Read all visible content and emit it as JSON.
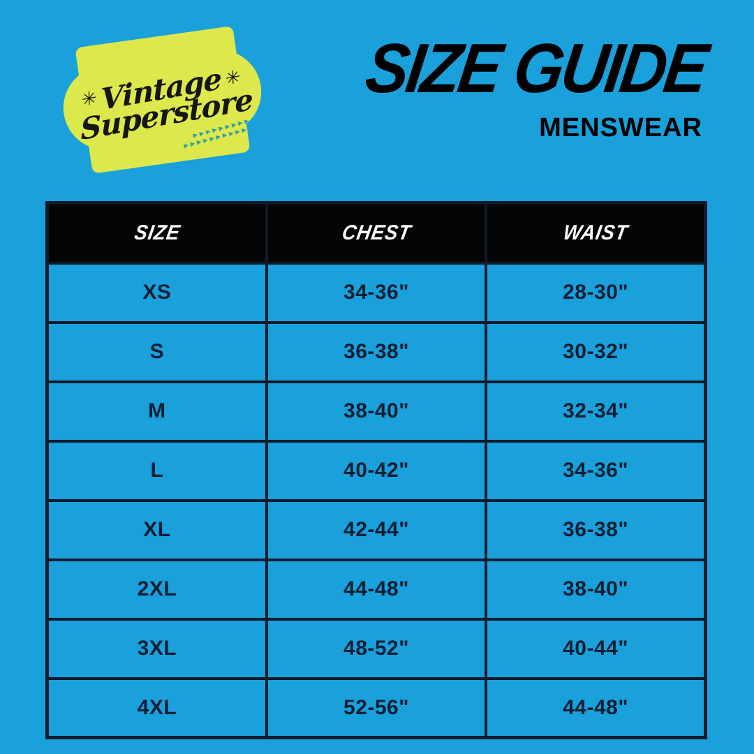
{
  "colors": {
    "background": "#1AA0DB",
    "badge_yellow": "#DCE84B",
    "arrow_teal": "#2E9EA6",
    "table_border": "#0E1B2B",
    "header_bg": "#050505",
    "header_text": "#FFFFFF",
    "cell_text": "#0F1F33",
    "title_color": "#000000"
  },
  "logo": {
    "line1": "Vintage",
    "line2": "Superstore",
    "sparkle": "✳",
    "arrows_line1": "▸▸▸▸▸▸▸▸▸",
    "arrows_line2": "▸▸▸▸▸▸▸▸▸▸"
  },
  "header": {
    "title": "SIZE GUIDE",
    "subtitle": "MENSWEAR"
  },
  "table": {
    "headers": [
      "SIZE",
      "CHEST",
      "WAIST"
    ],
    "rows": [
      {
        "size": "XS",
        "chest": "34-36\"",
        "waist": "28-30\""
      },
      {
        "size": "S",
        "chest": "36-38\"",
        "waist": "30-32\""
      },
      {
        "size": "M",
        "chest": "38-40\"",
        "waist": "32-34\""
      },
      {
        "size": "L",
        "chest": "40-42\"",
        "waist": "34-36\""
      },
      {
        "size": "XL",
        "chest": "42-44\"",
        "waist": "36-38\""
      },
      {
        "size": "2XL",
        "chest": "44-48\"",
        "waist": "38-40\""
      },
      {
        "size": "3XL",
        "chest": "48-52\"",
        "waist": "40-44\""
      },
      {
        "size": "4XL",
        "chest": "52-56\"",
        "waist": "44-48\""
      }
    ]
  }
}
